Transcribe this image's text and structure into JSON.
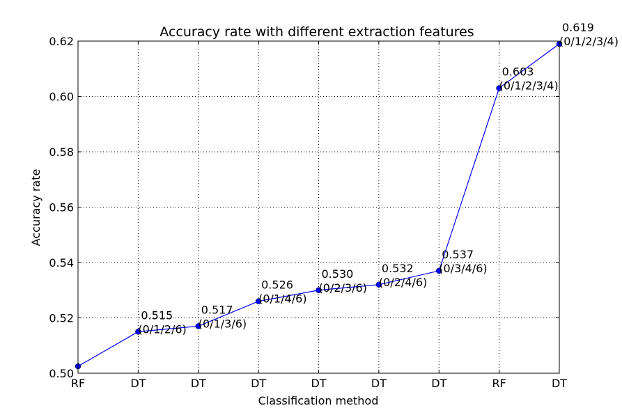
{
  "chart_data": {
    "type": "line",
    "title": "Accuracy rate with different extraction features",
    "xlabel": "Classification method",
    "ylabel": "Accuracy rate",
    "categories": [
      "RF",
      "DT",
      "DT",
      "DT",
      "DT",
      "DT",
      "DT",
      "RF",
      "DT"
    ],
    "ylim": [
      0.5,
      0.62
    ],
    "yticks": [
      "0.50",
      "0.52",
      "0.54",
      "0.56",
      "0.58",
      "0.60",
      "0.62"
    ],
    "grid": true,
    "series": [
      {
        "color": "#0000ff",
        "values": [
          0.5025,
          0.515,
          0.517,
          0.526,
          0.53,
          0.532,
          0.537,
          0.603,
          0.619
        ],
        "labels": [
          null,
          [
            "0.515",
            "(0/1/2/6)"
          ],
          [
            "0.517",
            "(0/1/3/6)"
          ],
          [
            "0.526",
            "(0/1/4/6)"
          ],
          [
            "0.530",
            "(0/2/3/6)"
          ],
          [
            "0.532",
            "(0/2/4/6)"
          ],
          [
            "0.537",
            "(0/3/4/6)"
          ],
          [
            "0.603",
            "(0/1/2/3/4)"
          ],
          [
            "0.619",
            "(0/1/2/3/4)"
          ]
        ]
      }
    ]
  }
}
